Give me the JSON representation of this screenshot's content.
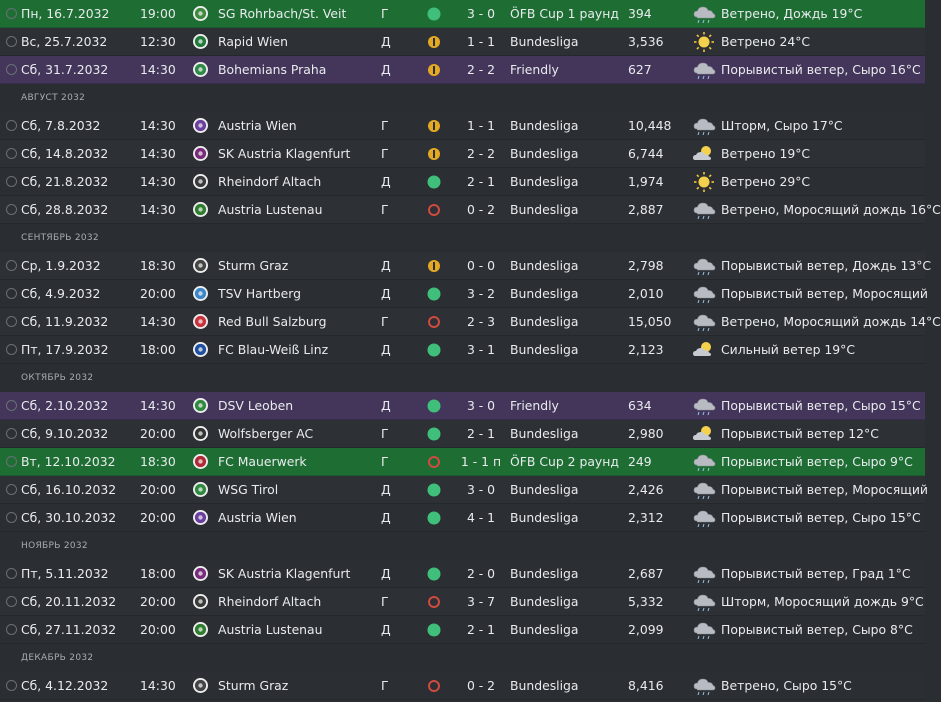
{
  "colors": {
    "win": "#3fbf7a",
    "draw": "#e5a823",
    "loss": "#d04a3f",
    "cup_row": "#1e6e34",
    "friendly_row": "#43365a"
  },
  "rows": [
    {
      "kind": "match",
      "row_type": "cup",
      "date": "Пн, 16.7.2032",
      "time": "19:00",
      "opponent": "SG Rohrbach/St. Veit",
      "venue": "Г",
      "result": "win",
      "score": "3 - 0",
      "competition": "ÖFB Cup 1 раунд",
      "attendance": "394",
      "weather_icon": "storm-cloud-icon",
      "weather": "Ветрено, Дождь 19°C",
      "crest_color": "#3f8a3e"
    },
    {
      "kind": "match",
      "row_type": "normal",
      "date": "Вс, 25.7.2032",
      "time": "12:30",
      "opponent": "Rapid Wien",
      "venue": "Д",
      "result": "draw",
      "score": "1 - 1",
      "competition": "Bundesliga",
      "attendance": "3,536",
      "weather_icon": "sun-icon",
      "weather": "Ветрено 24°C",
      "crest_color": "#1f7a3a"
    },
    {
      "kind": "match",
      "row_type": "friendly",
      "date": "Сб, 31.7.2032",
      "time": "14:30",
      "opponent": "Bohemians Praha",
      "venue": "Д",
      "result": "draw",
      "score": "2 - 2",
      "competition": "Friendly",
      "attendance": "627",
      "weather_icon": "storm-cloud-icon",
      "weather": "Порывистый ветер, Сыро 16°C",
      "crest_color": "#2e8b47"
    },
    {
      "kind": "header",
      "label": "Август 2032"
    },
    {
      "kind": "match",
      "row_type": "normal",
      "date": "Сб, 7.8.2032",
      "time": "14:30",
      "opponent": "Austria Wien",
      "venue": "Г",
      "result": "draw",
      "score": "1 - 1",
      "competition": "Bundesliga",
      "attendance": "10,448",
      "weather_icon": "storm-cloud-icon",
      "weather": "Шторм, Сыро 17°C",
      "crest_color": "#6b3fa0"
    },
    {
      "kind": "match",
      "row_type": "normal",
      "date": "Сб, 14.8.2032",
      "time": "14:30",
      "opponent": "SK Austria Klagenfurt",
      "venue": "Г",
      "result": "draw",
      "score": "2 - 2",
      "competition": "Bundesliga",
      "attendance": "6,744",
      "weather_icon": "sun-cloud-icon",
      "weather": "Ветрено 19°C",
      "crest_color": "#7a2a7a"
    },
    {
      "kind": "match",
      "row_type": "normal",
      "date": "Сб, 21.8.2032",
      "time": "14:30",
      "opponent": "Rheindorf Altach",
      "venue": "Д",
      "result": "win",
      "score": "2 - 1",
      "competition": "Bundesliga",
      "attendance": "1,974",
      "weather_icon": "sun-icon",
      "weather": "Ветрено 29°C",
      "crest_color": "#3a3a3a"
    },
    {
      "kind": "match",
      "row_type": "normal",
      "date": "Сб, 28.8.2032",
      "time": "14:30",
      "opponent": "Austria Lustenau",
      "venue": "Г",
      "result": "loss",
      "score": "0 - 2",
      "competition": "Bundesliga",
      "attendance": "2,887",
      "weather_icon": "storm-cloud-icon",
      "weather": "Ветрено, Моросящий дождь 16°C",
      "crest_color": "#2f7d2f"
    },
    {
      "kind": "header",
      "label": "Сентябрь 2032"
    },
    {
      "kind": "match",
      "row_type": "normal",
      "date": "Ср, 1.9.2032",
      "time": "18:30",
      "opponent": "Sturm Graz",
      "venue": "Д",
      "result": "draw",
      "score": "0 - 0",
      "competition": "Bundesliga",
      "attendance": "2,798",
      "weather_icon": "storm-cloud-icon",
      "weather": "Порывистый ветер, Дождь 13°C",
      "crest_color": "#444444"
    },
    {
      "kind": "match",
      "row_type": "normal",
      "date": "Сб, 4.9.2032",
      "time": "20:00",
      "opponent": "TSV Hartberg",
      "venue": "Д",
      "result": "win",
      "score": "3 - 2",
      "competition": "Bundesliga",
      "attendance": "2,010",
      "weather_icon": "storm-cloud-icon",
      "weather": "Порывистый ветер, Моросящий",
      "crest_color": "#3a86c8"
    },
    {
      "kind": "match",
      "row_type": "normal",
      "date": "Сб, 11.9.2032",
      "time": "14:30",
      "opponent": "Red Bull Salzburg",
      "venue": "Г",
      "result": "loss",
      "score": "2 - 3",
      "competition": "Bundesliga",
      "attendance": "15,050",
      "weather_icon": "storm-cloud-icon",
      "weather": "Ветрено, Моросящий дождь 14°C",
      "crest_color": "#c8323c"
    },
    {
      "kind": "match",
      "row_type": "normal",
      "date": "Пт, 17.9.2032",
      "time": "18:00",
      "opponent": "FC Blau-Weiß Linz",
      "venue": "Д",
      "result": "win",
      "score": "3 - 1",
      "competition": "Bundesliga",
      "attendance": "2,123",
      "weather_icon": "sun-cloud-icon",
      "weather": "Сильный ветер 19°C",
      "crest_color": "#1e4fa0"
    },
    {
      "kind": "header",
      "label": "Октябрь 2032"
    },
    {
      "kind": "match",
      "row_type": "friendly",
      "date": "Сб, 2.10.2032",
      "time": "14:30",
      "opponent": "DSV Leoben",
      "venue": "Д",
      "result": "win",
      "score": "3 - 0",
      "competition": "Friendly",
      "attendance": "634",
      "weather_icon": "storm-cloud-icon",
      "weather": "Порывистый ветер, Сыро 15°C",
      "crest_color": "#2f8a3f"
    },
    {
      "kind": "match",
      "row_type": "normal",
      "date": "Сб, 9.10.2032",
      "time": "20:00",
      "opponent": "Wolfsberger AC",
      "venue": "Г",
      "result": "win",
      "score": "2 - 1",
      "competition": "Bundesliga",
      "attendance": "2,980",
      "weather_icon": "sun-cloud-icon",
      "weather": "Порывистый ветер 12°C",
      "crest_color": "#333333"
    },
    {
      "kind": "match",
      "row_type": "cup",
      "date": "Вт, 12.10.2032",
      "time": "18:30",
      "opponent": "FC Mauerwerk",
      "venue": "Г",
      "result": "loss",
      "score": "1 - 1 п",
      "competition": "ÖFB Cup 2 раунд",
      "attendance": "249",
      "weather_icon": "storm-cloud-icon",
      "weather": "Порывистый ветер, Сыро 9°C",
      "crest_color": "#b02a35"
    },
    {
      "kind": "match",
      "row_type": "normal",
      "date": "Сб, 16.10.2032",
      "time": "20:00",
      "opponent": "WSG Tirol",
      "venue": "Д",
      "result": "win",
      "score": "3 - 0",
      "competition": "Bundesliga",
      "attendance": "2,426",
      "weather_icon": "storm-cloud-icon",
      "weather": "Порывистый ветер, Моросящий",
      "crest_color": "#2f8a3f"
    },
    {
      "kind": "match",
      "row_type": "normal",
      "date": "Сб, 30.10.2032",
      "time": "20:00",
      "opponent": "Austria Wien",
      "venue": "Д",
      "result": "win",
      "score": "4 - 1",
      "competition": "Bundesliga",
      "attendance": "2,312",
      "weather_icon": "storm-cloud-icon",
      "weather": "Порывистый ветер, Сыро 15°C",
      "crest_color": "#6b3fa0"
    },
    {
      "kind": "header",
      "label": "Ноябрь 2032"
    },
    {
      "kind": "match",
      "row_type": "normal",
      "date": "Пт, 5.11.2032",
      "time": "18:00",
      "opponent": "SK Austria Klagenfurt",
      "venue": "Д",
      "result": "win",
      "score": "2 - 0",
      "competition": "Bundesliga",
      "attendance": "2,687",
      "weather_icon": "storm-cloud-icon",
      "weather": "Порывистый ветер, Град 1°C",
      "crest_color": "#7a2a7a"
    },
    {
      "kind": "match",
      "row_type": "normal",
      "date": "Сб, 20.11.2032",
      "time": "20:00",
      "opponent": "Rheindorf Altach",
      "venue": "Г",
      "result": "loss",
      "score": "3 - 7",
      "competition": "Bundesliga",
      "attendance": "5,332",
      "weather_icon": "storm-cloud-icon",
      "weather": "Шторм, Моросящий дождь 9°C",
      "crest_color": "#3a3a3a"
    },
    {
      "kind": "match",
      "row_type": "normal",
      "date": "Сб, 27.11.2032",
      "time": "20:00",
      "opponent": "Austria Lustenau",
      "venue": "Д",
      "result": "win",
      "score": "2 - 1",
      "competition": "Bundesliga",
      "attendance": "2,099",
      "weather_icon": "storm-cloud-icon",
      "weather": "Порывистый ветер, Сыро 8°C",
      "crest_color": "#2f7d2f"
    },
    {
      "kind": "header",
      "label": "Декабрь 2032"
    },
    {
      "kind": "match",
      "row_type": "normal",
      "date": "Сб, 4.12.2032",
      "time": "14:30",
      "opponent": "Sturm Graz",
      "venue": "Г",
      "result": "loss",
      "score": "0 - 2",
      "competition": "Bundesliga",
      "attendance": "8,416",
      "weather_icon": "storm-cloud-icon",
      "weather": "Ветрено, Сыро 15°C",
      "crest_color": "#444444"
    }
  ]
}
